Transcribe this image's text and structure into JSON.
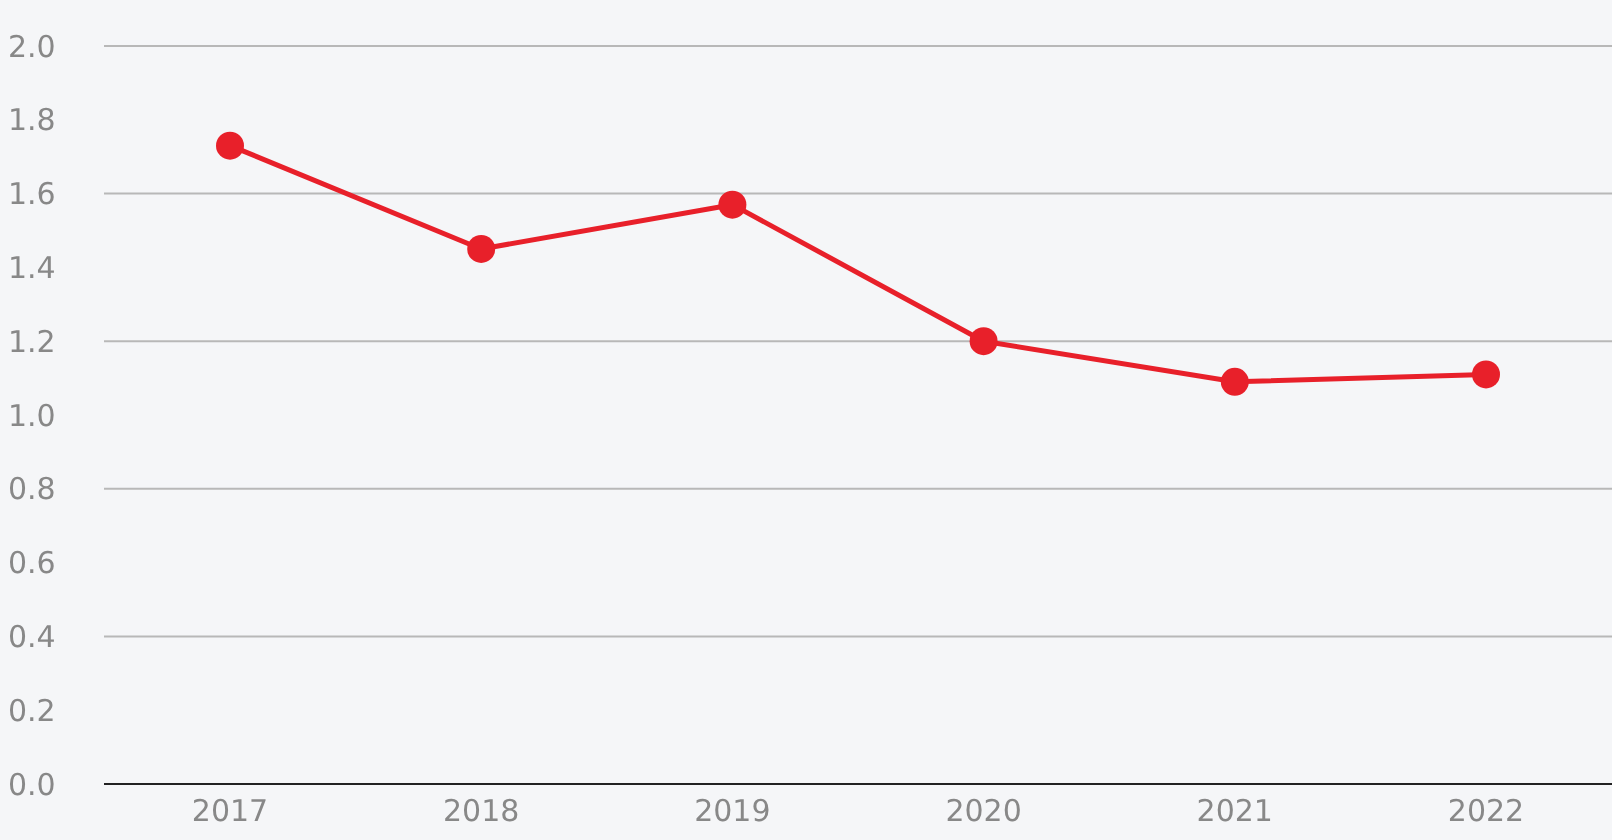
{
  "chart_data": {
    "type": "line",
    "categories": [
      "2017",
      "2018",
      "2019",
      "2020",
      "2021",
      "2022"
    ],
    "series": [
      {
        "color": "#e8202a",
        "values": [
          1.73,
          1.45,
          1.57,
          1.2,
          1.09,
          1.11
        ]
      }
    ],
    "ylim": [
      0,
      2
    ],
    "yticks": [
      {
        "value": 0,
        "label": "0.0"
      },
      {
        "value": 0.2,
        "label": "0.2"
      },
      {
        "value": 0.4,
        "label": "0.4"
      },
      {
        "value": 0.6,
        "label": "0.6"
      },
      {
        "value": 0.8,
        "label": "0.8"
      },
      {
        "value": 1,
        "label": "1.0"
      },
      {
        "value": 1.2,
        "label": "1.2"
      },
      {
        "value": 1.4,
        "label": "1.4"
      },
      {
        "value": 1.6,
        "label": "1.6"
      },
      {
        "value": 1.8,
        "label": "1.8"
      },
      {
        "value": 2,
        "label": "2.0"
      }
    ],
    "grid": "y",
    "marker": "circle",
    "line_style": "solid"
  }
}
